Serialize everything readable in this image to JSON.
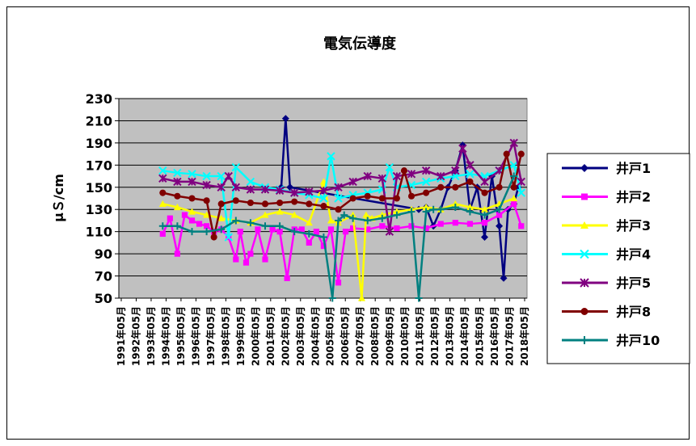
{
  "chart_data": {
    "type": "line",
    "title": "電気伝導度",
    "xlabel": "",
    "ylabel": "μＳ/cm",
    "ylim": [
      50,
      230
    ],
    "yticks": [
      50,
      70,
      90,
      110,
      130,
      150,
      170,
      190,
      210,
      230
    ],
    "grid": "horizontal",
    "legend_position": "right",
    "x_ticks": [
      "1991年05月",
      "1992年05月",
      "1993年05月",
      "1994年05月",
      "1995年05月",
      "1996年05月",
      "1997年05月",
      "1998年05月",
      "1999年05月",
      "2000年05月",
      "2001年05月",
      "2002年05月",
      "2003年05月",
      "2004年05月",
      "2005年05月",
      "2006年05月",
      "2007年05月",
      "2008年05月",
      "2009年05月",
      "2010年05月",
      "2011年05月",
      "2012年05月",
      "2013年05月",
      "2014年05月",
      "2015年05月",
      "2016年05月",
      "2017年05月",
      "2018年05月"
    ],
    "series": [
      {
        "name": "井戸1",
        "color": "#000080",
        "marker": "diamond",
        "x": [
          2002.1,
          2002.4,
          2002.7,
          2011.5,
          2012.0,
          2012.5,
          2013.0,
          2013.5,
          2014.0,
          2014.5,
          2015.0,
          2015.5,
          2016.0,
          2016.5,
          2017.0,
          2017.3,
          2017.6,
          2018.0,
          2018.3
        ],
        "y": [
          150,
          212,
          150,
          130,
          132,
          115,
          130,
          150,
          165,
          188,
          130,
          150,
          105,
          160,
          115,
          68,
          130,
          135,
          150
        ]
      },
      {
        "name": "井戸2",
        "color": "#ff00ff",
        "marker": "square",
        "x": [
          1994.0,
          1994.5,
          1995.0,
          1995.5,
          1996.0,
          1996.5,
          1997.0,
          1997.5,
          1998.0,
          1998.5,
          1999.0,
          1999.3,
          1999.7,
          2000.0,
          2000.5,
          2001.0,
          2001.5,
          2002.0,
          2002.5,
          2003.0,
          2003.5,
          2004.0,
          2004.5,
          2005.0,
          2005.5,
          2006.0,
          2006.5,
          2007.0,
          2008.0,
          2009.0,
          2010.0,
          2011.0,
          2012.0,
          2013.0,
          2014.0,
          2015.0,
          2016.0,
          2017.0,
          2018.0,
          2018.5
        ],
        "y": [
          108,
          122,
          90,
          125,
          120,
          117,
          115,
          110,
          112,
          105,
          85,
          110,
          82,
          90,
          112,
          85,
          112,
          110,
          68,
          112,
          112,
          100,
          110,
          97,
          112,
          64,
          110,
          113,
          112,
          115,
          113,
          115,
          113,
          117,
          118,
          117,
          118,
          125,
          135,
          115
        ]
      },
      {
        "name": "井戸3",
        "color": "#ffff00",
        "marker": "triangle",
        "x": [
          1994.0,
          1995.0,
          1996.0,
          1997.0,
          1998.0,
          1999.0,
          2000.0,
          2001.0,
          2002.0,
          2003.0,
          2004.0,
          2005.0,
          2005.5,
          2006.0,
          2007.0,
          2007.6,
          2007.9,
          2008.3,
          2009.0,
          2010.0,
          2011.0,
          2012.0,
          2013.0,
          2014.0,
          2015.0,
          2016.0,
          2017.0,
          2018.0
        ],
        "y": [
          135,
          132,
          128,
          125,
          122,
          120,
          118,
          125,
          128,
          125,
          118,
          155,
          120,
          118,
          125,
          50,
          125,
          122,
          125,
          128,
          130,
          132,
          130,
          135,
          132,
          130,
          135,
          140
        ]
      },
      {
        "name": "井戸4",
        "color": "#00ffff",
        "marker": "x",
        "x": [
          1994.0,
          1995.0,
          1996.0,
          1997.0,
          1998.0,
          1998.5,
          1999.0,
          2000.0,
          2001.0,
          2002.0,
          2003.0,
          2004.0,
          2005.0,
          2005.5,
          2006.0,
          2007.0,
          2008.0,
          2009.0,
          2009.5,
          2010.0,
          2011.0,
          2012.0,
          2013.0,
          2014.0,
          2015.0,
          2016.0,
          2017.0,
          2018.0,
          2018.5
        ],
        "y": [
          165,
          163,
          162,
          160,
          160,
          105,
          168,
          155,
          150,
          148,
          145,
          143,
          140,
          178,
          140,
          143,
          145,
          148,
          168,
          150,
          152,
          155,
          158,
          160,
          162,
          160,
          165,
          170,
          145
        ]
      },
      {
        "name": "井戸5",
        "color": "#800080",
        "marker": "asterisk",
        "x": [
          1994.0,
          1995.0,
          1996.0,
          1997.0,
          1998.0,
          1998.5,
          1999.0,
          2000.0,
          2001.0,
          2002.0,
          2003.0,
          2004.0,
          2005.0,
          2006.0,
          2007.0,
          2008.0,
          2009.0,
          2009.5,
          2010.0,
          2011.0,
          2012.0,
          2013.0,
          2014.0,
          2014.5,
          2015.0,
          2016.0,
          2017.0,
          2018.0,
          2018.5
        ],
        "y": [
          158,
          155,
          155,
          152,
          150,
          160,
          150,
          148,
          148,
          147,
          145,
          146,
          147,
          150,
          155,
          160,
          158,
          110,
          160,
          162,
          165,
          160,
          165,
          185,
          170,
          155,
          165,
          190,
          155
        ]
      },
      {
        "name": "井戸8",
        "color": "#800000",
        "marker": "circle",
        "x": [
          1994.0,
          1995.0,
          1996.0,
          1997.0,
          1997.5,
          1998.0,
          1999.0,
          2000.0,
          2001.0,
          2002.0,
          2003.0,
          2004.0,
          2005.0,
          2006.0,
          2007.0,
          2008.0,
          2009.0,
          2010.0,
          2010.5,
          2011.0,
          2012.0,
          2013.0,
          2014.0,
          2015.0,
          2016.0,
          2017.0,
          2017.5,
          2018.0,
          2018.5
        ],
        "y": [
          145,
          142,
          140,
          138,
          105,
          135,
          138,
          136,
          135,
          136,
          137,
          135,
          133,
          130,
          140,
          142,
          140,
          140,
          165,
          142,
          145,
          150,
          150,
          155,
          145,
          150,
          180,
          150,
          180
        ]
      },
      {
        "name": "井戸10",
        "color": "#008080",
        "marker": "plus",
        "x": [
          1994.0,
          1995.0,
          1996.0,
          1997.0,
          1998.0,
          1999.0,
          2000.0,
          2001.0,
          2002.0,
          2003.0,
          2004.0,
          2005.0,
          2005.6,
          2006.0,
          2006.4,
          2007.0,
          2008.0,
          2009.0,
          2010.0,
          2011.0,
          2011.5,
          2012.0,
          2012.5,
          2013.0,
          2014.0,
          2015.0,
          2016.0,
          2017.0,
          2018.0
        ],
        "y": [
          115,
          115,
          110,
          110,
          112,
          120,
          118,
          115,
          115,
          110,
          108,
          105,
          50,
          120,
          125,
          122,
          120,
          122,
          125,
          128,
          50,
          128,
          130,
          130,
          132,
          128,
          125,
          130,
          160
        ]
      }
    ]
  }
}
